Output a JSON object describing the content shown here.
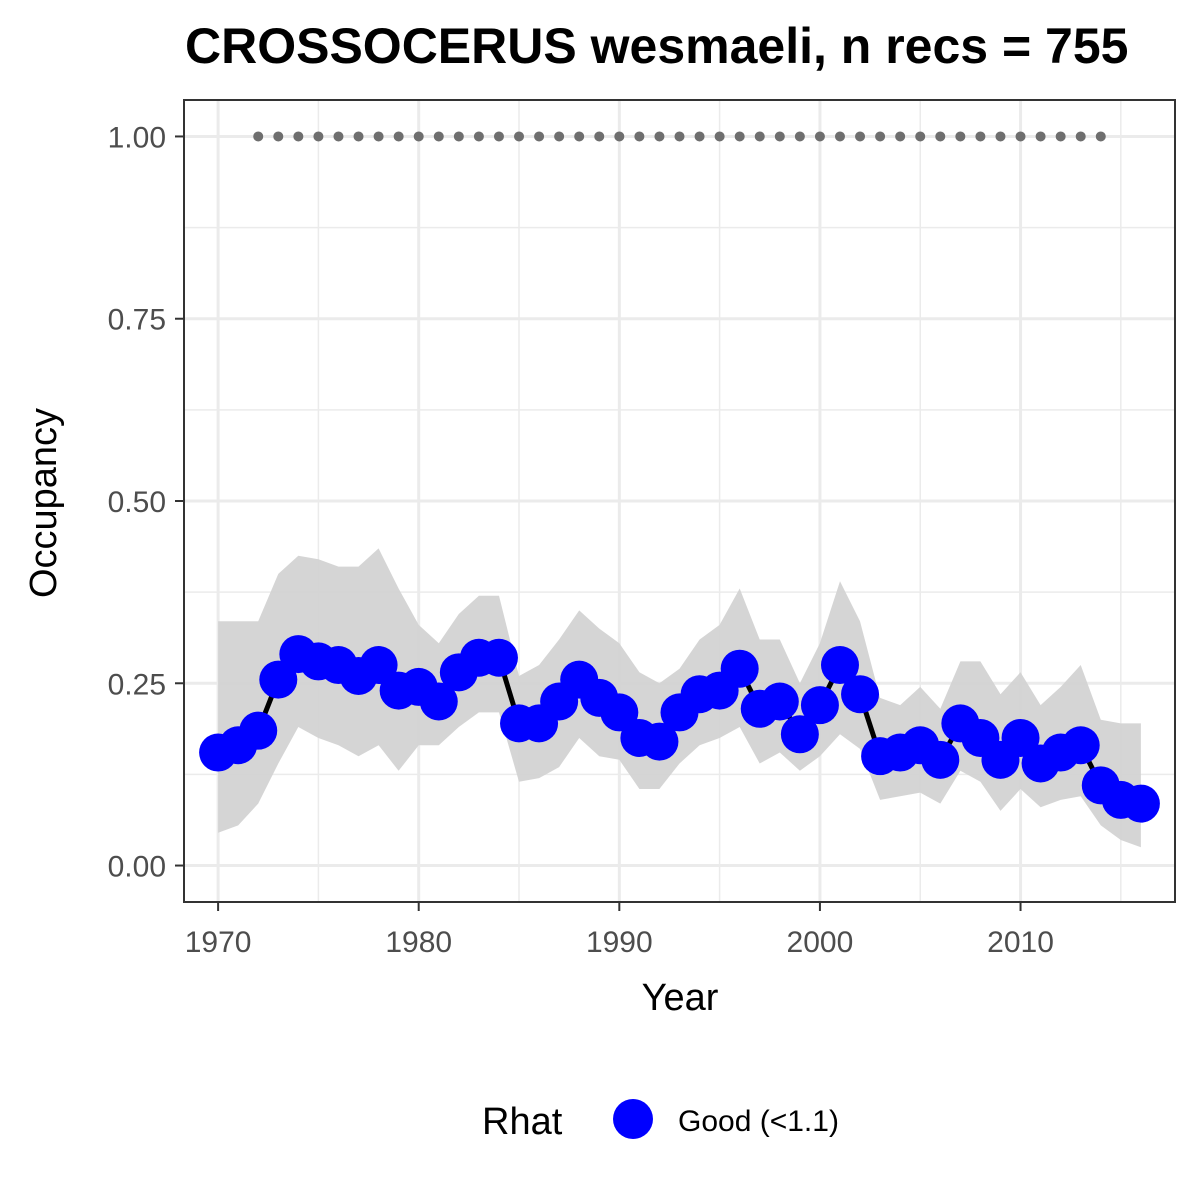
{
  "chart_data": {
    "type": "line",
    "title": "CROSSOCERUS wesmaeli, n recs = 755",
    "xlabel": "Year",
    "ylabel": "Occupancy",
    "xlim": [
      1968.3,
      2017.7
    ],
    "ylim": [
      -0.05,
      1.05
    ],
    "x_ticks": [
      1970,
      1980,
      1990,
      2000,
      2010
    ],
    "x_tick_labels": [
      "1970",
      "1980",
      "1990",
      "2000",
      "2010"
    ],
    "y_ticks": [
      0,
      0.25,
      0.5,
      0.75,
      1.0
    ],
    "y_tick_labels": [
      "0.00",
      "0.25",
      "0.50",
      "0.75",
      "1.00"
    ],
    "grid": true,
    "legend": {
      "title": "Rhat",
      "position": "bottom",
      "entries": [
        {
          "label": "Good (<1.1)",
          "color": "#0000ff"
        }
      ]
    },
    "colors": {
      "points": "#0000ff",
      "line": "#000000",
      "ribbon": "#d3d3d3",
      "record_markers": "#6e6e6e",
      "panel_border": "#333333",
      "grid": "#ebebeb"
    },
    "series": [
      {
        "x": [
          1970,
          1971,
          1972,
          1973,
          1974,
          1975,
          1976,
          1977,
          1978,
          1979,
          1980,
          1981,
          1982,
          1983,
          1984,
          1985,
          1986,
          1987,
          1988,
          1989,
          1990,
          1991,
          1992,
          1993,
          1994,
          1995,
          1996,
          1997,
          1998,
          1999,
          2000,
          2001,
          2002,
          2003,
          2004,
          2005,
          2006,
          2007,
          2008,
          2009,
          2010,
          2011,
          2012,
          2013,
          2014,
          2015,
          2016
        ],
        "y": [
          0.155,
          0.165,
          0.185,
          0.255,
          0.29,
          0.28,
          0.275,
          0.26,
          0.275,
          0.24,
          0.245,
          0.225,
          0.265,
          0.285,
          0.285,
          0.195,
          0.195,
          0.225,
          0.255,
          0.23,
          0.21,
          0.175,
          0.17,
          0.21,
          0.235,
          0.24,
          0.27,
          0.215,
          0.225,
          0.18,
          0.22,
          0.275,
          0.235,
          0.15,
          0.155,
          0.165,
          0.145,
          0.195,
          0.175,
          0.145,
          0.175,
          0.14,
          0.155,
          0.165,
          0.11,
          0.09,
          0.085
        ],
        "lower": [
          0.045,
          0.055,
          0.085,
          0.14,
          0.19,
          0.175,
          0.165,
          0.15,
          0.165,
          0.13,
          0.165,
          0.165,
          0.19,
          0.21,
          0.21,
          0.115,
          0.12,
          0.135,
          0.175,
          0.15,
          0.145,
          0.105,
          0.105,
          0.14,
          0.165,
          0.175,
          0.19,
          0.14,
          0.155,
          0.13,
          0.15,
          0.18,
          0.16,
          0.09,
          0.095,
          0.1,
          0.085,
          0.13,
          0.115,
          0.075,
          0.105,
          0.08,
          0.09,
          0.095,
          0.055,
          0.035,
          0.025
        ],
        "upper": [
          0.335,
          0.335,
          0.335,
          0.4,
          0.425,
          0.42,
          0.41,
          0.41,
          0.435,
          0.38,
          0.33,
          0.305,
          0.345,
          0.37,
          0.37,
          0.26,
          0.275,
          0.31,
          0.35,
          0.325,
          0.305,
          0.265,
          0.25,
          0.27,
          0.31,
          0.33,
          0.38,
          0.31,
          0.31,
          0.25,
          0.305,
          0.39,
          0.335,
          0.23,
          0.22,
          0.245,
          0.215,
          0.28,
          0.28,
          0.235,
          0.265,
          0.22,
          0.245,
          0.275,
          0.2,
          0.195,
          0.195
        ]
      }
    ],
    "records": {
      "x": [
        1972,
        1973,
        1974,
        1975,
        1976,
        1977,
        1978,
        1979,
        1980,
        1981,
        1982,
        1983,
        1984,
        1985,
        1986,
        1987,
        1988,
        1989,
        1990,
        1991,
        1992,
        1993,
        1994,
        1995,
        1996,
        1997,
        1998,
        1999,
        2000,
        2001,
        2002,
        2003,
        2004,
        2005,
        2006,
        2007,
        2008,
        2009,
        2010,
        2011,
        2012,
        2013,
        2014
      ],
      "y": 1.0
    }
  }
}
